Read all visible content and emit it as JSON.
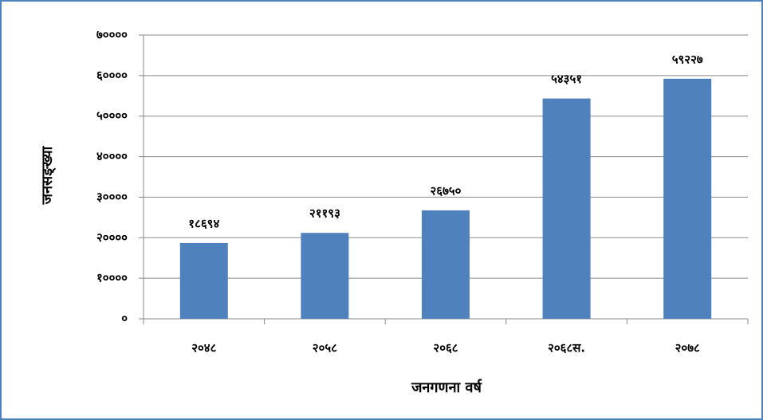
{
  "chart_data": {
    "type": "bar",
    "categories": [
      "२०४८",
      "२०५८",
      "२०६८",
      "२०६८स.",
      "२०७८"
    ],
    "values": [
      18694,
      21193,
      26750,
      54351,
      59227
    ],
    "value_labels": [
      "१८६९४",
      "२११९३",
      "२६७५०",
      "५४३५१",
      "५९२२७"
    ],
    "color": "#4f81bd",
    "x_label": "जनगणना वर्ष",
    "y_label": "जनसङ्ख्या",
    "ylim": [
      0,
      70000
    ],
    "yticks": [
      {
        "value": 0,
        "label": "०"
      },
      {
        "value": 10000,
        "label": "१००००"
      },
      {
        "value": 20000,
        "label": "२००००"
      },
      {
        "value": 30000,
        "label": "३००००"
      },
      {
        "value": 40000,
        "label": "४००००"
      },
      {
        "value": 50000,
        "label": "५००००"
      },
      {
        "value": 60000,
        "label": "६००००"
      },
      {
        "value": 70000,
        "label": "७००००"
      }
    ],
    "grid": true
  }
}
